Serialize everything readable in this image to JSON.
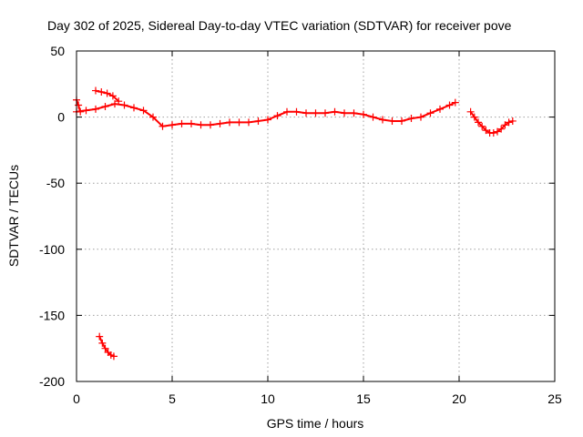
{
  "chart_data": {
    "type": "scatter",
    "title": "Day 302 of 2025, Sidereal Day-to-day VTEC variation (SDTVAR) for receiver pove",
    "xlabel": "GPS time / hours",
    "ylabel": "SDTVAR / TECUs",
    "xlim": [
      0,
      25
    ],
    "ylim": [
      -200,
      50
    ],
    "xticks": [
      0,
      5,
      10,
      15,
      20,
      25
    ],
    "yticks": [
      -200,
      -150,
      -100,
      -50,
      0,
      50
    ],
    "xtick_labels": [
      "0",
      "5",
      "10",
      "15",
      "20",
      "25"
    ],
    "ytick_labels": [
      "-200",
      "-150",
      "-100",
      "-50",
      "0",
      "50"
    ],
    "grid": true,
    "marker": "+",
    "color": "#ff0000",
    "series": [
      {
        "name": "upper arc",
        "x": [
          0.0,
          0.5,
          1.0,
          1.5,
          2.0,
          2.5,
          3.0,
          3.5,
          4.0,
          4.5,
          5.0,
          5.5,
          6.0,
          6.5,
          7.0,
          7.5,
          8.0,
          8.5,
          9.0,
          9.5,
          10.0,
          10.5,
          11.0,
          11.5,
          12.0,
          12.5,
          13.0,
          13.5,
          14.0,
          14.5,
          15.0,
          15.5,
          16.0,
          16.5,
          17.0,
          17.5,
          18.0,
          18.5,
          19.0,
          19.5,
          19.8
        ],
        "y": [
          4,
          5,
          6,
          8,
          10,
          9,
          7,
          5,
          0,
          -7,
          -6,
          -5,
          -5,
          -6,
          -6,
          -5,
          -4,
          -4,
          -4,
          -3,
          -2,
          1,
          4,
          4,
          3,
          3,
          3,
          4,
          3,
          3,
          2,
          0,
          -2,
          -3,
          -3,
          -1,
          0,
          3,
          6,
          9,
          11
        ]
      },
      {
        "name": "early hump",
        "x": [
          1.0,
          1.3,
          1.6,
          1.9,
          2.2
        ],
        "y": [
          20,
          19,
          18,
          16,
          12
        ]
      },
      {
        "name": "start spike",
        "x": [
          0.0,
          0.1,
          0.2
        ],
        "y": [
          13,
          9,
          4
        ]
      },
      {
        "name": "late arc",
        "x": [
          20.6,
          20.8,
          21.0,
          21.2,
          21.4,
          21.6,
          21.8,
          22.0,
          22.2,
          22.4,
          22.6,
          22.8
        ],
        "y": [
          4,
          0,
          -4,
          -7,
          -10,
          -12,
          -12,
          -11,
          -9,
          -6,
          -4,
          -3
        ]
      },
      {
        "name": "outlier arc",
        "x": [
          1.2,
          1.35,
          1.5,
          1.65,
          1.8,
          1.95
        ],
        "y": [
          -166,
          -171,
          -175,
          -178,
          -180,
          -181
        ]
      }
    ]
  }
}
